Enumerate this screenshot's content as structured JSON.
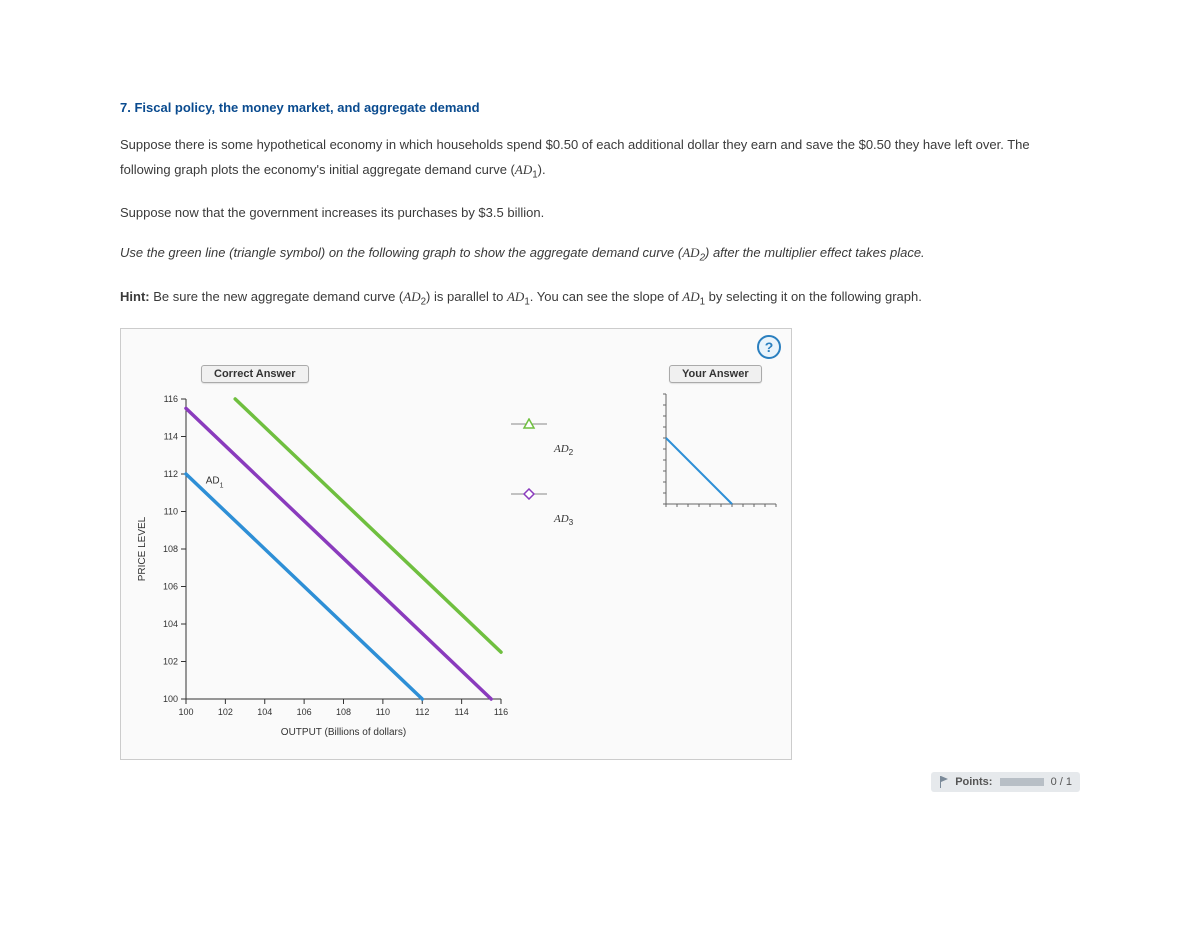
{
  "question": {
    "number_title": "7. Fiscal policy, the money market, and aggregate demand",
    "p1_a": "Suppose there is some hypothetical economy in which households spend $0.50 of each additional dollar they earn and save the $0.50 they have left over. The following graph plots the economy's initial aggregate demand curve (",
    "p1_ad1_var": "AD",
    "p1_ad1_sub": "1",
    "p1_b": ").",
    "p2": "Suppose now that the government increases its purchases by $3.5 billion.",
    "p3_a": "Use the green line (triangle symbol) on the following graph to show the aggregate demand curve (",
    "p3_ad2_var": "AD",
    "p3_ad2_sub": "2",
    "p3_b": ") after the multiplier effect takes place.",
    "hint_label": "Hint:",
    "hint_a": " Be sure the new aggregate demand curve (",
    "hint_ad2_var": "AD",
    "hint_ad2_sub": "2",
    "hint_b": ") is parallel to ",
    "hint_ad1_var": "AD",
    "hint_ad1_sub": "1",
    "hint_c": ". You can see the slope of ",
    "hint_ad1b_var": "AD",
    "hint_ad1b_sub": "1",
    "hint_d": " by selecting it on the following graph."
  },
  "tabs": {
    "correct": "Correct Answer",
    "your": "Your Answer"
  },
  "help_glyph": "?",
  "chart": {
    "type": "line",
    "background_color": "#fafafa",
    "axis_color": "#333333",
    "tick_color": "#333333",
    "xlabel": "OUTPUT (Billions of dollars)",
    "ylabel": "PRICE LEVEL",
    "label_fontsize": 10,
    "tick_fontsize": 9,
    "xlim": [
      100,
      116
    ],
    "ylim": [
      100,
      116
    ],
    "xticks": [
      100,
      102,
      104,
      106,
      108,
      110,
      112,
      114,
      116
    ],
    "yticks": [
      100,
      102,
      104,
      106,
      108,
      110,
      112,
      114,
      116
    ],
    "series": [
      {
        "name": "AD1",
        "label": "AD1",
        "color": "#2e8fd6",
        "width": 3.5,
        "x": [
          100,
          112
        ],
        "y": [
          112,
          100
        ]
      },
      {
        "name": "AD3",
        "label": "AD3",
        "color": "#8a3bbd",
        "width": 3.5,
        "x": [
          100,
          115.5
        ],
        "y": [
          115.5,
          100
        ]
      },
      {
        "name": "AD2",
        "label": "AD2",
        "color": "#6fbf3f",
        "width": 3.5,
        "x": [
          102.5,
          116
        ],
        "y": [
          116,
          102.5
        ]
      }
    ],
    "ad1_point_label": "AD",
    "ad1_point_sub": "1"
  },
  "legend": {
    "items": [
      {
        "label_var": "AD",
        "label_sub": "2",
        "marker": "triangle",
        "color": "#6fbf3f"
      },
      {
        "label_var": "AD",
        "label_sub": "3",
        "marker": "diamond",
        "color": "#8a3bbd"
      }
    ]
  },
  "mini_chart": {
    "axis_color": "#666666",
    "line_color": "#2e8fd6",
    "line_width": 2,
    "xlim": [
      0,
      10
    ],
    "ylim": [
      0,
      10
    ],
    "x": [
      0,
      6
    ],
    "y": [
      6,
      0
    ]
  },
  "points": {
    "label": "Points:",
    "score": "0 / 1"
  }
}
